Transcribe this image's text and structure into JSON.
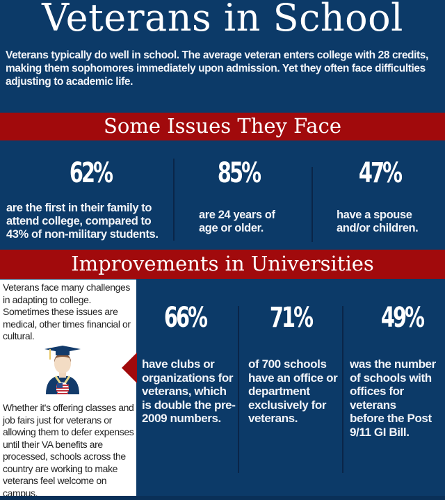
{
  "header": {
    "title": "Veterans in School",
    "intro": "Veterans typically do well in school. The average veteran enters college with 28 credits, making them sophomores immediately upon admission. Yet they often face difficulties adjusting to academic life."
  },
  "issues": {
    "heading": "Some Issues They Face",
    "stats": [
      {
        "value": "62%",
        "description": "are the first in their family to attend college, compared to 43% of non-military students."
      },
      {
        "value": "85%",
        "description": "are 24 years of age or older."
      },
      {
        "value": "47%",
        "description": "have a spouse and/or children."
      }
    ]
  },
  "improvements": {
    "heading": "Improvements in Universities",
    "sidebar_top": "Veterans face many challenges in adapting to college. Sometimes these issues are medical, other times financial or cultural.",
    "sidebar_bottom": "Whether it's offering classes and job fairs just for veterans or allowing them to defer expenses until their VA benefits are processed, schools across the country are working to make veterans feel welcome on campus.",
    "graduate_icon": "graduate-veteran-icon",
    "stats": [
      {
        "value": "66%",
        "description": "have clubs or organizations for veterans, which is double the pre-2009 numbers."
      },
      {
        "value": "71%",
        "description": "of 700 schools have an office or department exclusively for veterans."
      },
      {
        "value": "49%",
        "description": "was the number of schools with offices for veterans\n before the Post 9/11 GI Bill."
      }
    ]
  },
  "colors": {
    "navy": "#0c3a68",
    "red": "#a10a0c",
    "white": "#ffffff"
  }
}
